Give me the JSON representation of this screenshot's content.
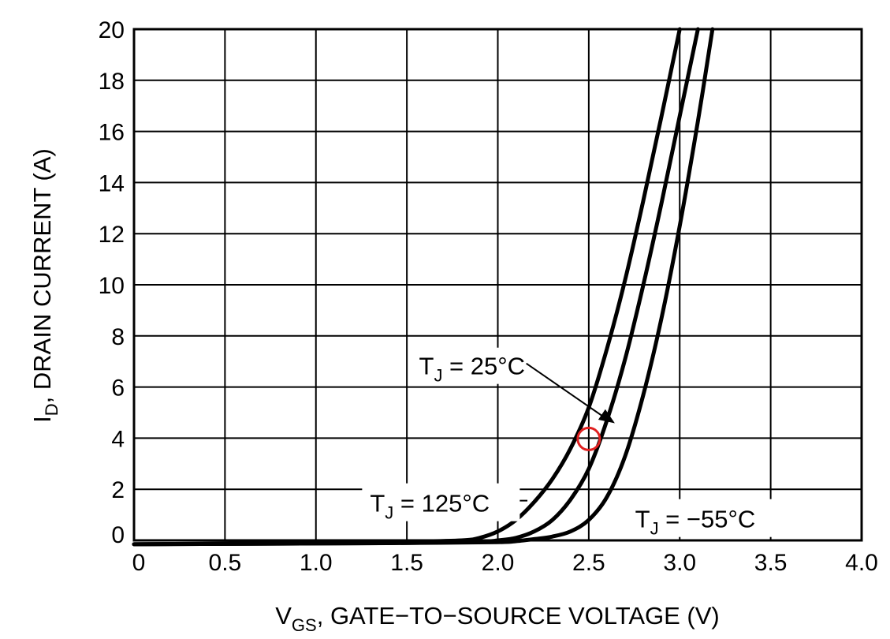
{
  "chart_data": {
    "type": "line",
    "xlabel": {
      "main": "V",
      "sub": "GS",
      "rest": ", GATE−TO−SOURCE VOLTAGE (V)"
    },
    "ylabel": {
      "main": "I",
      "sub": "D",
      "rest": ", DRAIN CURRENT (A)"
    },
    "xlim": [
      0,
      4.0
    ],
    "ylim": [
      0,
      20
    ],
    "x_ticks": [
      {
        "value": 0,
        "label": "0"
      },
      {
        "value": 0.5,
        "label": "0.5"
      },
      {
        "value": 1.0,
        "label": "1.0"
      },
      {
        "value": 1.5,
        "label": "1.5"
      },
      {
        "value": 2.0,
        "label": "2.0"
      },
      {
        "value": 2.5,
        "label": "2.5"
      },
      {
        "value": 3.0,
        "label": "3.0"
      },
      {
        "value": 3.5,
        "label": "3.5"
      },
      {
        "value": 4.0,
        "label": "4.0"
      }
    ],
    "y_ticks": [
      {
        "value": 0,
        "label": "0"
      },
      {
        "value": 2,
        "label": "2"
      },
      {
        "value": 4,
        "label": "4"
      },
      {
        "value": 6,
        "label": "6"
      },
      {
        "value": 8,
        "label": "8"
      },
      {
        "value": 10,
        "label": "10"
      },
      {
        "value": 12,
        "label": "12"
      },
      {
        "value": 14,
        "label": "14"
      },
      {
        "value": 16,
        "label": "16"
      },
      {
        "value": 18,
        "label": "18"
      },
      {
        "value": 20,
        "label": "20"
      }
    ],
    "grid": true,
    "series": [
      {
        "id": "125C",
        "label": {
          "main": "T",
          "sub": "J",
          "rest": " = 125°C"
        },
        "x": [
          0,
          1.0,
          1.5,
          1.8,
          1.9,
          2.0,
          2.1,
          2.2,
          2.3,
          2.4,
          2.5,
          2.6,
          2.7,
          2.8,
          2.9,
          3.0
        ],
        "y": [
          -0.15,
          -0.1,
          -0.05,
          0.0,
          0.1,
          0.35,
          0.8,
          1.5,
          2.4,
          3.6,
          5.2,
          7.5,
          10.2,
          13.3,
          16.6,
          20.0
        ]
      },
      {
        "id": "25C",
        "label": {
          "main": "T",
          "sub": "J",
          "rest": " = 25°C"
        },
        "x": [
          0,
          1.0,
          1.5,
          1.9,
          2.0,
          2.1,
          2.2,
          2.3,
          2.4,
          2.5,
          2.6,
          2.7,
          2.8,
          2.9,
          3.0,
          3.1
        ],
        "y": [
          -0.15,
          -0.12,
          -0.1,
          -0.05,
          0.0,
          0.1,
          0.35,
          0.8,
          1.6,
          2.8,
          4.7,
          7.1,
          10.0,
          13.2,
          16.6,
          20.0
        ]
      },
      {
        "id": "-55C",
        "label": {
          "main": "T",
          "sub": "J",
          "rest": " = −55°C"
        },
        "x": [
          0,
          1.0,
          1.5,
          2.0,
          2.1,
          2.2,
          2.3,
          2.4,
          2.5,
          2.6,
          2.7,
          2.8,
          2.9,
          3.0,
          3.1,
          3.18
        ],
        "y": [
          -0.15,
          -0.12,
          -0.1,
          -0.07,
          -0.03,
          0.05,
          0.15,
          0.35,
          0.8,
          1.7,
          3.3,
          5.7,
          8.7,
          12.3,
          16.4,
          20.0
        ]
      }
    ],
    "annotations": [
      {
        "series": "25C",
        "text": {
          "main": "T",
          "sub": "J",
          "rest": " = 25°C"
        },
        "anchor": {
          "x": 1.48,
          "y": 6.8
        },
        "arrow_to": {
          "x": 2.6,
          "y": 5.2
        },
        "arrow_from": {
          "x": 2.2,
          "y": 6.8
        }
      },
      {
        "series": "125C",
        "text": {
          "main": "T",
          "sub": "J",
          "rest": " = 125°C"
        },
        "anchor": {
          "x": 1.28,
          "y": 1.8
        },
        "leader_to": {
          "x": 2.18,
          "y": 1.8
        },
        "leader_from": {
          "x": 1.28,
          "y": 1.8
        }
      },
      {
        "series": "-55C",
        "text": {
          "main": "T",
          "sub": "J",
          "rest": " = −55°C"
        },
        "anchor": {
          "x": 2.72,
          "y": 0.75
        }
      }
    ],
    "highlight": {
      "x": 2.5,
      "y": 4.0,
      "color": "#e02020"
    },
    "colors": {
      "line": "#000000",
      "grid": "#000000",
      "background": "#ffffff"
    }
  }
}
